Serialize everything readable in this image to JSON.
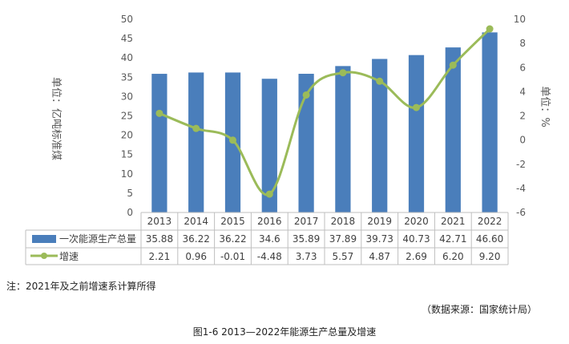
{
  "chart_data": {
    "type": "bar+line",
    "categories": [
      "2013",
      "2014",
      "2015",
      "2016",
      "2017",
      "2018",
      "2019",
      "2020",
      "2021",
      "2022"
    ],
    "series": [
      {
        "name": "一次能源生产总量",
        "type": "bar",
        "axis": "left",
        "values": [
          35.88,
          36.22,
          36.22,
          34.6,
          35.89,
          37.89,
          39.73,
          40.73,
          42.71,
          46.6
        ],
        "labels": [
          "35.88",
          "36.22",
          "36.22",
          "34.6",
          "35.89",
          "37.89",
          "39.73",
          "40.73",
          "42.71",
          "46.60"
        ],
        "color": "#4a7ebb"
      },
      {
        "name": "增速",
        "type": "line",
        "axis": "right",
        "values": [
          2.21,
          0.96,
          -0.01,
          -4.48,
          3.73,
          5.57,
          4.87,
          2.69,
          6.2,
          9.2
        ],
        "labels": [
          "2.21",
          "0.96",
          "-0.01",
          "-4.48",
          "3.73",
          "5.57",
          "4.87",
          "2.69",
          "6.20",
          "9.20"
        ],
        "color": "#9bbb59"
      }
    ],
    "ylim": [
      0,
      50
    ],
    "yticks": [
      "0",
      "5",
      "10",
      "15",
      "20",
      "25",
      "30",
      "35",
      "40",
      "45",
      "50"
    ],
    "y2lim": [
      -6,
      10
    ],
    "y2ticks": [
      "-6",
      "-4",
      "-2",
      "0",
      "2",
      "4",
      "6",
      "8",
      "10"
    ],
    "ylabel": "单位：亿吨标准煤",
    "y2label": "单位：%",
    "data_table": true
  },
  "note": "注：2021年及之前增速系计算所得",
  "source": "（数据来源：国家统计局）",
  "caption": "图1-6  2013—2022年能源生产总量及增速"
}
